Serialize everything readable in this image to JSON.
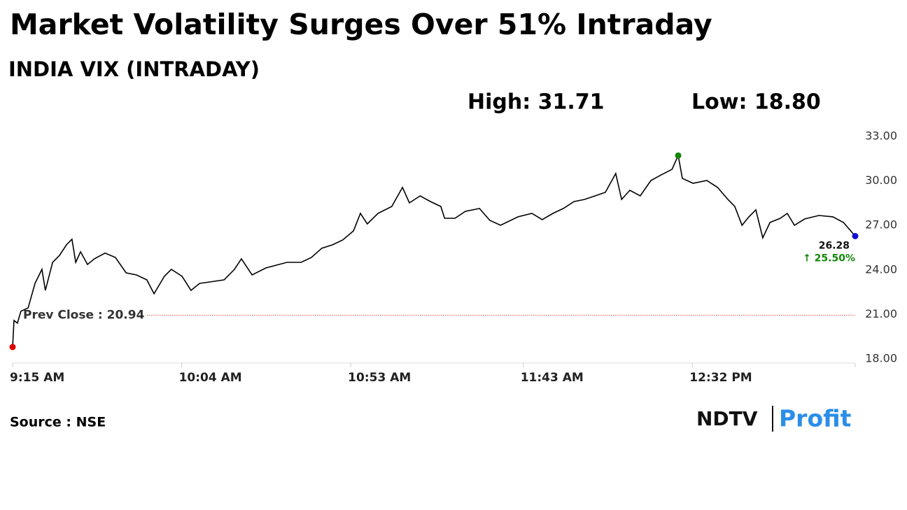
{
  "chart_data": {
    "type": "line",
    "title": "Market Volatility Surges Over 51% Intraday",
    "subtitle": "INDIA VIX (INTRADAY)",
    "high_label": "High: 31.71",
    "low_label": "Low: 18.80",
    "prev_close": 20.94,
    "prev_close_label": "Prev Close : 20.94",
    "last_label": "26.28",
    "change_label": "↑ 25.50%",
    "source": "Source : NSE",
    "logo": [
      "NDTV",
      "Profit"
    ],
    "xlim": [
      0,
      244.2
    ],
    "xticks": [
      {
        "value": 0,
        "label": "9:15 AM"
      },
      {
        "value": 49,
        "label": "10:04 AM"
      },
      {
        "value": 98,
        "label": "10:53 AM"
      },
      {
        "value": 148,
        "label": "11:43 AM"
      },
      {
        "value": 197,
        "label": "12:32 PM"
      }
    ],
    "ylim": [
      18,
      33
    ],
    "yticks": [
      {
        "value": 18,
        "label": "18.00"
      },
      {
        "value": 21,
        "label": "21.00"
      },
      {
        "value": 24,
        "label": "24.00"
      },
      {
        "value": 27,
        "label": "27.00"
      },
      {
        "value": 30,
        "label": "30.00"
      },
      {
        "value": 33,
        "label": "33.00"
      }
    ],
    "series": [
      {
        "name": "INDIA VIX",
        "color": "#000000",
        "x": [
          0,
          0.4,
          1.4,
          2.4,
          4.5,
          6.5,
          8.5,
          9.5,
          11.6,
          13.6,
          15.6,
          17.2,
          18.3,
          19.7,
          21.7,
          23.7,
          26.8,
          29.8,
          32.9,
          35.9,
          38.9,
          41.0,
          44.0,
          46.0,
          49.1,
          51.7,
          54.2,
          57.2,
          61.3,
          64.3,
          66.3,
          69.4,
          73.4,
          79.5,
          83.6,
          86.6,
          89.6,
          92.7,
          95.7,
          98.8,
          100.8,
          102.8,
          105.9,
          109.9,
          113.0,
          115.0,
          118.1,
          121.1,
          124.1,
          125.2,
          128.2,
          131.2,
          135.3,
          138.3,
          141.4,
          146.5,
          150.5,
          153.5,
          156.6,
          159.6,
          162.7,
          165.7,
          168.8,
          171.8,
          174.8,
          176.5,
          178.9,
          181.9,
          185.0,
          188.0,
          191.1,
          192.9,
          194.1,
          197.2,
          201.2,
          204.3,
          207.3,
          209.3,
          211.4,
          213.4,
          215.4,
          217.4,
          219.5,
          222.5,
          224.5,
          226.6,
          229.6,
          233.7,
          237.7,
          240.8,
          244.2
        ],
        "values": [
          18.8,
          20.59,
          20.41,
          21.21,
          21.44,
          23.09,
          24.04,
          22.62,
          24.51,
          24.98,
          25.69,
          26.07,
          24.51,
          25.22,
          24.37,
          24.75,
          25.13,
          24.84,
          23.8,
          23.66,
          23.33,
          22.39,
          23.57,
          24.04,
          23.57,
          22.62,
          23.09,
          23.19,
          23.33,
          24.04,
          24.75,
          23.66,
          24.13,
          24.51,
          24.51,
          24.84,
          25.46,
          25.69,
          26.02,
          26.63,
          27.81,
          27.1,
          27.81,
          28.28,
          29.56,
          28.52,
          28.99,
          28.61,
          28.28,
          27.48,
          27.48,
          27.95,
          28.14,
          27.34,
          27.01,
          27.58,
          27.81,
          27.39,
          27.81,
          28.14,
          28.61,
          28.75,
          28.99,
          29.23,
          30.5,
          28.75,
          29.37,
          28.99,
          30.03,
          30.41,
          30.78,
          31.71,
          30.17,
          29.84,
          30.03,
          29.56,
          28.75,
          28.28,
          27.01,
          27.58,
          28.05,
          26.16,
          27.2,
          27.48,
          27.81,
          27.01,
          27.44,
          27.67,
          27.58,
          27.2,
          26.28
        ]
      }
    ],
    "prev_close_color": "#d9534f",
    "high_color": "#138808",
    "low_color": "#e00000",
    "last_color": "#1010d0",
    "change_color": "#138808"
  }
}
